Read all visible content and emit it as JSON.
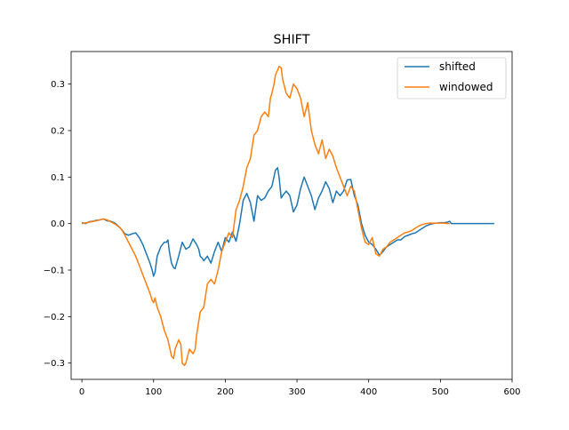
{
  "chart_data": {
    "type": "line",
    "title": "SHIFT",
    "xlabel": "",
    "ylabel": "",
    "xlim": [
      -15,
      600
    ],
    "ylim": [
      -0.335,
      0.37
    ],
    "x_ticks": [
      0,
      100,
      200,
      300,
      400,
      500,
      600
    ],
    "x_tick_labels": [
      "0",
      "100",
      "200",
      "300",
      "400",
      "500",
      "600"
    ],
    "y_ticks": [
      -0.3,
      -0.2,
      -0.1,
      0.0,
      0.1,
      0.2,
      0.3
    ],
    "y_tick_labels": [
      "−0.3",
      "−0.2",
      "−0.1",
      "0.0",
      "0.1",
      "0.2",
      "0.3"
    ],
    "grid": false,
    "legend_position": "top-right",
    "series": [
      {
        "name": "shifted",
        "color": "#1f77b4",
        "x": [
          0,
          5,
          10,
          15,
          20,
          25,
          30,
          35,
          40,
          45,
          50,
          55,
          60,
          65,
          70,
          75,
          80,
          85,
          90,
          95,
          98,
          100,
          102,
          105,
          110,
          115,
          118,
          120,
          122,
          125,
          128,
          130,
          135,
          140,
          145,
          150,
          155,
          160,
          163,
          165,
          168,
          170,
          175,
          180,
          185,
          190,
          195,
          200,
          205,
          210,
          215,
          220,
          225,
          230,
          235,
          240,
          245,
          250,
          255,
          260,
          265,
          270,
          273,
          275,
          278,
          280,
          285,
          290,
          295,
          300,
          305,
          310,
          315,
          320,
          325,
          330,
          335,
          340,
          345,
          350,
          355,
          360,
          365,
          370,
          375,
          380,
          385,
          390,
          395,
          400,
          405,
          410,
          415,
          420,
          425,
          430,
          435,
          440,
          445,
          450,
          455,
          460,
          465,
          470,
          475,
          480,
          485,
          490,
          495,
          500,
          505,
          510,
          513,
          515,
          520,
          530,
          540,
          550,
          560,
          570,
          575
        ],
        "y": [
          0.002,
          0.0,
          0.004,
          0.005,
          0.007,
          0.008,
          0.01,
          0.006,
          0.005,
          0.002,
          -0.004,
          -0.012,
          -0.022,
          -0.025,
          -0.022,
          -0.02,
          -0.03,
          -0.045,
          -0.065,
          -0.085,
          -0.1,
          -0.113,
          -0.105,
          -0.07,
          -0.05,
          -0.04,
          -0.04,
          -0.035,
          -0.06,
          -0.085,
          -0.095,
          -0.097,
          -0.07,
          -0.04,
          -0.055,
          -0.05,
          -0.033,
          -0.045,
          -0.055,
          -0.07,
          -0.075,
          -0.08,
          -0.07,
          -0.085,
          -0.06,
          -0.04,
          -0.06,
          -0.03,
          -0.04,
          -0.018,
          -0.038,
          0.0,
          0.05,
          0.065,
          0.045,
          0.005,
          0.06,
          0.05,
          0.055,
          0.07,
          0.08,
          0.115,
          0.12,
          0.1,
          0.055,
          0.06,
          0.07,
          0.06,
          0.025,
          0.04,
          0.075,
          0.1,
          0.08,
          0.06,
          0.03,
          0.055,
          0.07,
          0.09,
          0.075,
          0.045,
          0.07,
          0.06,
          0.07,
          0.094,
          0.095,
          0.06,
          0.04,
          0.0,
          -0.025,
          -0.04,
          -0.045,
          -0.055,
          -0.068,
          -0.06,
          -0.05,
          -0.045,
          -0.04,
          -0.035,
          -0.035,
          -0.028,
          -0.025,
          -0.022,
          -0.02,
          -0.015,
          -0.01,
          -0.005,
          -0.002,
          0.0,
          0.001,
          0.002,
          0.002,
          0.003,
          0.005,
          0.0,
          0.0,
          0.0,
          0.0,
          0.0,
          0.0,
          0.0,
          0.0
        ]
      },
      {
        "name": "windowed",
        "color": "#ff7f0e",
        "x": [
          0,
          10,
          20,
          30,
          35,
          40,
          45,
          50,
          55,
          60,
          65,
          70,
          75,
          80,
          85,
          90,
          95,
          98,
          100,
          102,
          105,
          110,
          115,
          120,
          125,
          128,
          130,
          135,
          138,
          140,
          143,
          145,
          150,
          155,
          158,
          160,
          165,
          170,
          175,
          180,
          185,
          190,
          195,
          200,
          205,
          210,
          215,
          220,
          225,
          230,
          235,
          240,
          245,
          250,
          255,
          260,
          263,
          265,
          268,
          270,
          273,
          275,
          278,
          280,
          285,
          290,
          295,
          300,
          305,
          310,
          315,
          320,
          325,
          330,
          335,
          340,
          345,
          350,
          355,
          360,
          365,
          370,
          375,
          380,
          385,
          390,
          395,
          400,
          405,
          410,
          415,
          420,
          425,
          430,
          435,
          440,
          445,
          450,
          455,
          460,
          465,
          470,
          475,
          480,
          485,
          490,
          495,
          500,
          505,
          510,
          513
        ],
        "y": [
          0.0,
          0.003,
          0.006,
          0.01,
          0.008,
          0.004,
          0.0,
          -0.005,
          -0.012,
          -0.025,
          -0.04,
          -0.055,
          -0.07,
          -0.09,
          -0.11,
          -0.13,
          -0.15,
          -0.165,
          -0.17,
          -0.16,
          -0.18,
          -0.2,
          -0.23,
          -0.25,
          -0.285,
          -0.29,
          -0.27,
          -0.25,
          -0.26,
          -0.3,
          -0.305,
          -0.3,
          -0.27,
          -0.28,
          -0.27,
          -0.24,
          -0.19,
          -0.18,
          -0.13,
          -0.12,
          -0.13,
          -0.1,
          -0.06,
          -0.04,
          -0.02,
          -0.03,
          0.03,
          0.05,
          0.08,
          0.12,
          0.14,
          0.19,
          0.2,
          0.23,
          0.24,
          0.23,
          0.27,
          0.28,
          0.3,
          0.32,
          0.33,
          0.338,
          0.335,
          0.31,
          0.28,
          0.27,
          0.3,
          0.29,
          0.27,
          0.23,
          0.26,
          0.2,
          0.17,
          0.15,
          0.18,
          0.14,
          0.16,
          0.145,
          0.12,
          0.1,
          0.08,
          0.06,
          0.08,
          0.07,
          0.03,
          -0.01,
          -0.04,
          -0.045,
          -0.03,
          -0.065,
          -0.07,
          -0.055,
          -0.05,
          -0.04,
          -0.035,
          -0.03,
          -0.025,
          -0.02,
          -0.018,
          -0.015,
          -0.01,
          -0.005,
          -0.002,
          0.0,
          0.001,
          0.001,
          0.001,
          0.001,
          0.001,
          0.0,
          0.0
        ]
      }
    ]
  }
}
